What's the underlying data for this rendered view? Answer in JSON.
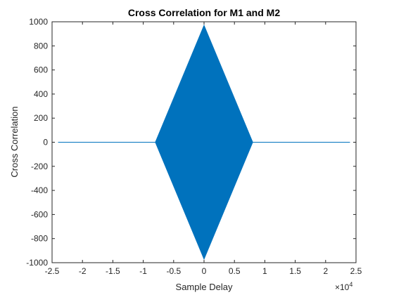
{
  "chart_data": {
    "type": "line",
    "title": "Cross Correlation for M1 and M2",
    "xlabel": "Sample Delay",
    "ylabel": "Cross Correlation",
    "xlim": [
      -25000,
      25000
    ],
    "ylim": [
      -1000,
      1000
    ],
    "x_tick_labels": [
      "-2.5",
      "-2",
      "-1.5",
      "-1",
      "-0.5",
      "0",
      "0.5",
      "1",
      "1.5",
      "2",
      "2.5"
    ],
    "x_tick_values": [
      -25000,
      -20000,
      -15000,
      -10000,
      -5000,
      0,
      5000,
      10000,
      15000,
      20000,
      25000
    ],
    "x_multiplier": "×10",
    "x_multiplier_exp": "4",
    "y_tick_labels": [
      "-1000",
      "-800",
      "-600",
      "-400",
      "-200",
      "0",
      "200",
      "400",
      "600",
      "800",
      "1000"
    ],
    "y_tick_values": [
      -1000,
      -800,
      -600,
      -400,
      -200,
      0,
      200,
      400,
      600,
      800,
      1000
    ],
    "grid": false,
    "series": [
      {
        "color": "#0072bd",
        "x_range": [
          -24000,
          24000
        ],
        "envelope": {
          "x": [
            -24000,
            -8000,
            0,
            8000,
            24000
          ],
          "upper": [
            0,
            0,
            970,
            0,
            0
          ],
          "lower": [
            0,
            0,
            -970,
            0,
            0
          ]
        }
      }
    ]
  }
}
